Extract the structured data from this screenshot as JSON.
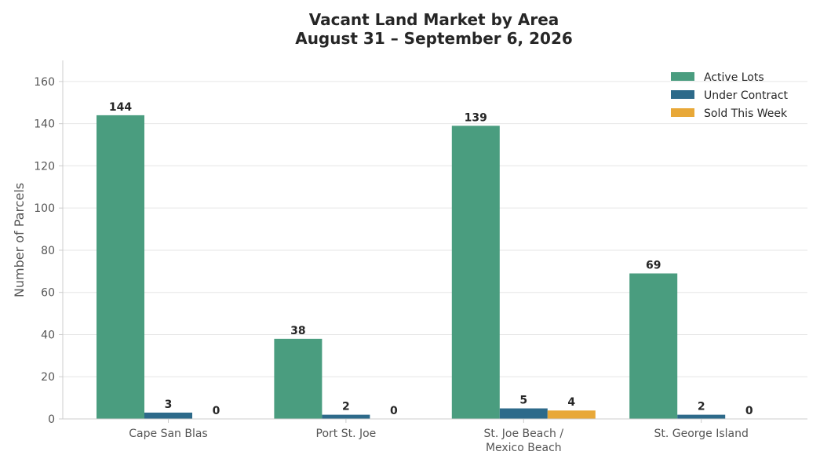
{
  "chart_data": {
    "type": "bar",
    "title": "Vacant Land Market by Area",
    "subtitle": "August 31 – September 6, 2026",
    "xlabel": "",
    "ylabel": "Number of Parcels",
    "ylim": [
      0,
      170
    ],
    "yticks": [
      0,
      20,
      40,
      60,
      80,
      100,
      120,
      140,
      160
    ],
    "grid": true,
    "legend_position": "top-right",
    "categories": [
      [
        "Cape San Blas"
      ],
      [
        "Port St. Joe"
      ],
      [
        "St. Joe Beach /",
        "Mexico Beach"
      ],
      [
        "St. George Island"
      ]
    ],
    "series": [
      {
        "name": "Active Lots",
        "color": "#4a9d7f",
        "values": [
          144,
          38,
          139,
          69
        ]
      },
      {
        "name": "Under Contract",
        "color": "#2d6a8a",
        "values": [
          3,
          2,
          5,
          2
        ]
      },
      {
        "name": "Sold This Week",
        "color": "#e8a838",
        "values": [
          0,
          0,
          4,
          0
        ]
      }
    ]
  }
}
